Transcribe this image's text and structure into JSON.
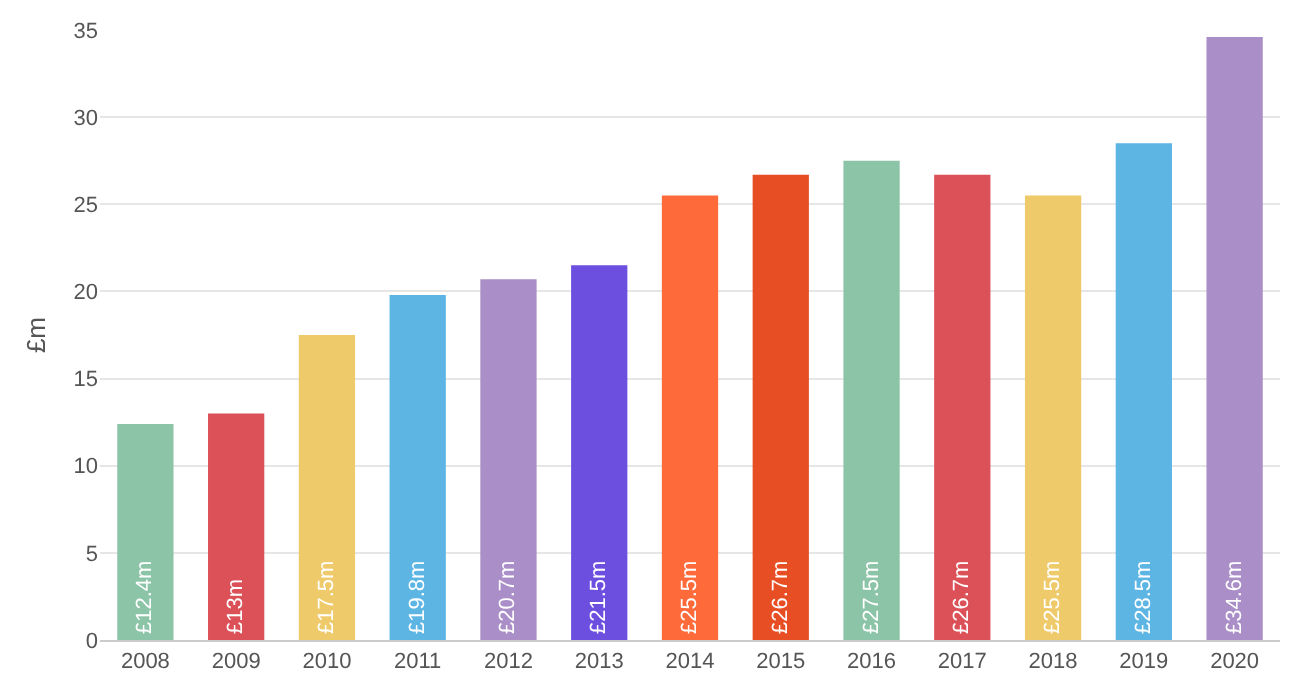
{
  "chart_data": {
    "type": "bar",
    "ylabel": "£m",
    "categories": [
      "2008",
      "2009",
      "2010",
      "2011",
      "2012",
      "2013",
      "2014",
      "2015",
      "2016",
      "2017",
      "2018",
      "2019",
      "2020"
    ],
    "values": [
      12.4,
      13,
      17.5,
      19.8,
      20.7,
      21.5,
      25.5,
      26.7,
      27.5,
      26.7,
      25.5,
      28.5,
      34.6
    ],
    "value_labels": [
      "£12.4m",
      "£13m",
      "£17.5m",
      "£19.8m",
      "£20.7m",
      "£21.5m",
      "£25.5m",
      "£26.7m",
      "£27.5m",
      "£26.7m",
      "£25.5m",
      "£28.5m",
      "£34.6m"
    ],
    "colors": [
      "#8cc4a8",
      "#db5157",
      "#efca6b",
      "#5db5e4",
      "#aa8ec7",
      "#6d4fe0",
      "#ff6a3b",
      "#e84e24",
      "#8cc4a8",
      "#db5157",
      "#efca6b",
      "#5db5e4",
      "#aa8ec7"
    ],
    "ylim": [
      0,
      35
    ],
    "yticks": [
      0,
      5,
      10,
      15,
      20,
      25,
      30,
      35
    ],
    "grid": "y",
    "legend": false
  }
}
